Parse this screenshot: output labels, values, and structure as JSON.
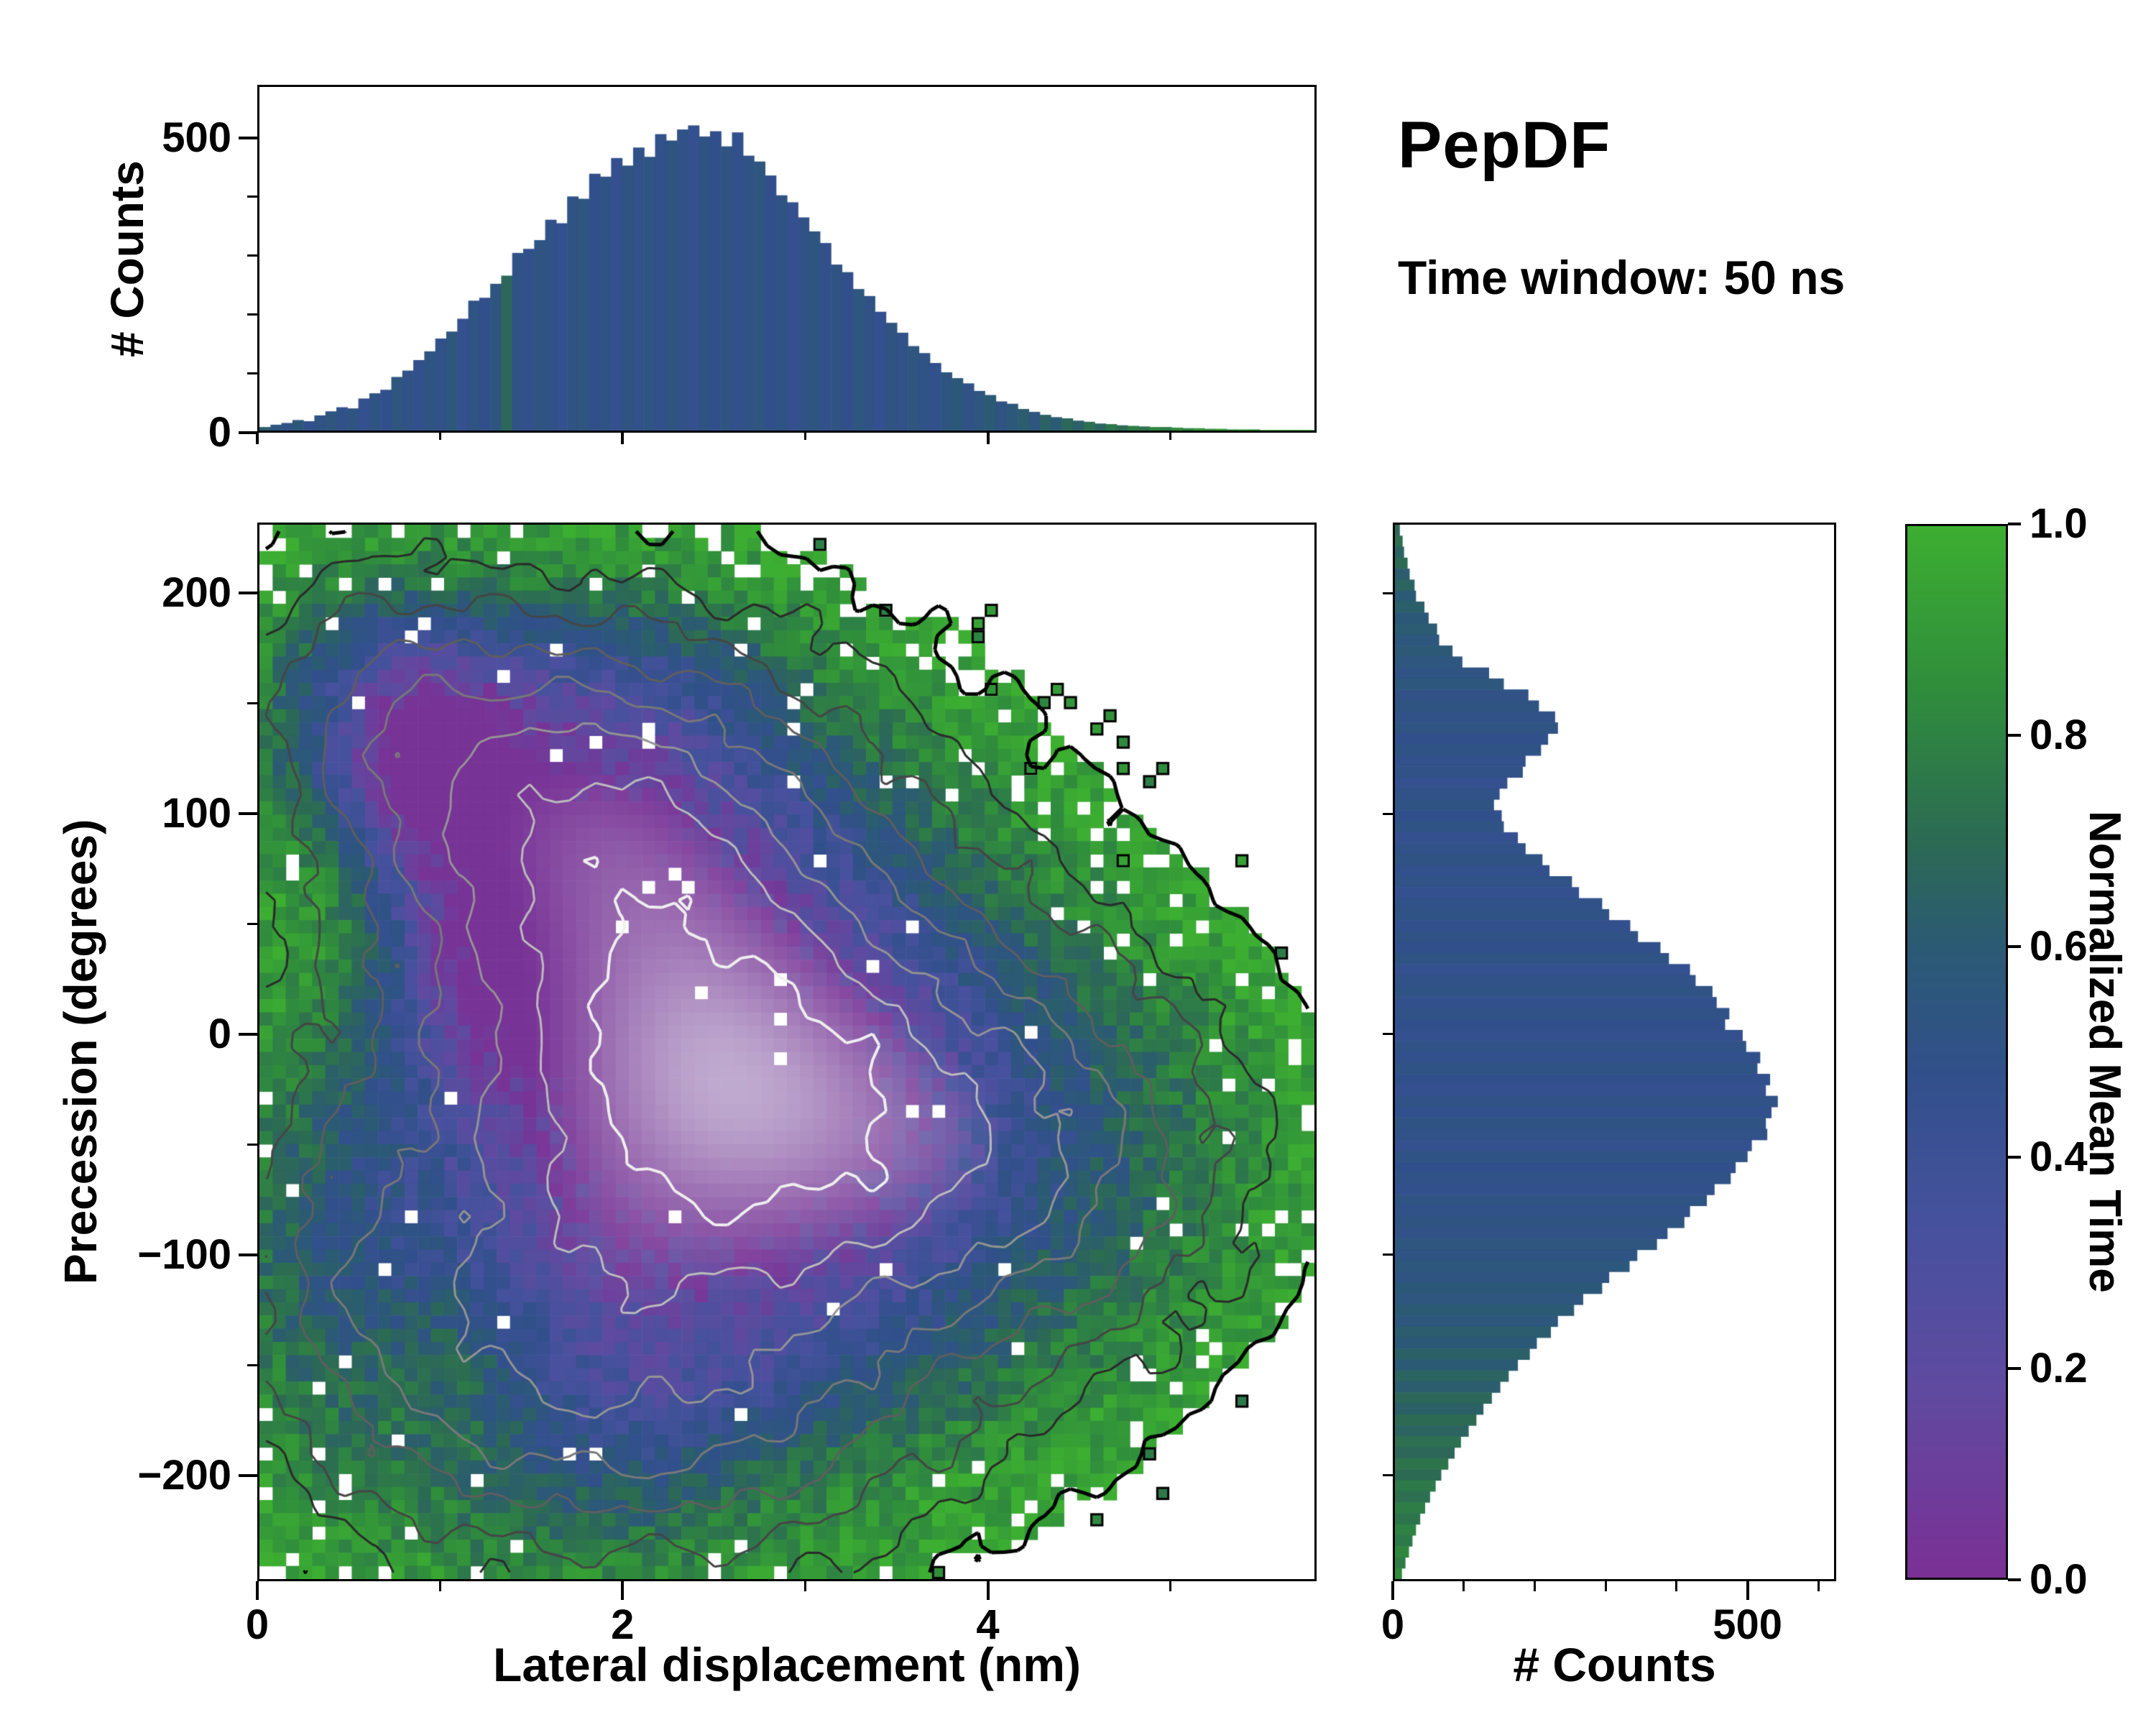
{
  "header": {
    "title": "PepDF",
    "subtitle": "Time window: 50 ns"
  },
  "colormap": {
    "stops": [
      [
        0.0,
        "#7b3095"
      ],
      [
        0.18,
        "#5f4aa0"
      ],
      [
        0.33,
        "#47519e"
      ],
      [
        0.48,
        "#31508b"
      ],
      [
        0.6,
        "#2b5a74"
      ],
      [
        0.7,
        "#2c6a54"
      ],
      [
        0.84,
        "#2f8c3c"
      ],
      [
        1.0,
        "#3cae31"
      ]
    ]
  },
  "chart_data": {
    "top_hist": {
      "type": "bar",
      "orientation": "vertical",
      "ylabel": "# Counts",
      "x_range": [
        0,
        5.8
      ],
      "y_range": [
        0,
        590
      ],
      "yticks": [
        {
          "label": "0",
          "value": 0
        },
        {
          "label": "500",
          "value": 500
        }
      ],
      "y_minor": [
        100,
        200,
        300,
        400
      ],
      "xticks": [
        {
          "label": "",
          "value": 0
        },
        {
          "label": "",
          "value": 2
        },
        {
          "label": "",
          "value": 4
        }
      ],
      "x_minor": [
        1,
        3,
        5
      ],
      "values": [
        6,
        10,
        13,
        18,
        16,
        26,
        33,
        40,
        38,
        55,
        64,
        70,
        92,
        103,
        121,
        136,
        158,
        170,
        192,
        223,
        228,
        252,
        266,
        305,
        312,
        327,
        362,
        356,
        402,
        398,
        441,
        436,
        468,
        455,
        486,
        470,
        509,
        498,
        517,
        524,
        505,
        514,
        488,
        512,
        472,
        462,
        438,
        404,
        392,
        366,
        342,
        322,
        285,
        272,
        243,
        231,
        204,
        185,
        168,
        145,
        133,
        116,
        100,
        90,
        81,
        68,
        61,
        50,
        46,
        37,
        32,
        27,
        23,
        21,
        17,
        15,
        12,
        11,
        9,
        8,
        7,
        6,
        6,
        5,
        4,
        4,
        3,
        3,
        2,
        2,
        2,
        1,
        1,
        1,
        1,
        1
      ],
      "colors": [
        0.62,
        0.55,
        0.5,
        0.58,
        0.47,
        0.52,
        0.55,
        0.49,
        0.53,
        0.46,
        0.52,
        0.48,
        0.55,
        0.5,
        0.47,
        0.53,
        0.49,
        0.56,
        0.46,
        0.52,
        0.48,
        0.54,
        0.68,
        0.5,
        0.47,
        0.53,
        0.49,
        0.46,
        0.52,
        0.55,
        0.48,
        0.51,
        0.46,
        0.53,
        0.49,
        0.52,
        0.47,
        0.54,
        0.5,
        0.46,
        0.52,
        0.48,
        0.53,
        0.47,
        0.51,
        0.55,
        0.48,
        0.52,
        0.46,
        0.5,
        0.54,
        0.47,
        0.52,
        0.48,
        0.55,
        0.5,
        0.46,
        0.53,
        0.49,
        0.55,
        0.51,
        0.47,
        0.54,
        0.58,
        0.5,
        0.55,
        0.6,
        0.52,
        0.57,
        0.62,
        0.55,
        0.65,
        0.6,
        0.68,
        0.63,
        0.72,
        0.66,
        0.75,
        0.7,
        0.78,
        0.74,
        0.82,
        0.77,
        0.85,
        0.8,
        0.88,
        0.83,
        0.9,
        0.86,
        0.92,
        0.88,
        0.93,
        0.9,
        0.95,
        0.92,
        0.96
      ]
    },
    "joint_heatmap": {
      "type": "heatmap",
      "xlabel": "Lateral displacement (nm)",
      "ylabel": "Precession (degrees)",
      "x_range": [
        0,
        5.8
      ],
      "y_range": [
        -248,
        232
      ],
      "xticks": [
        {
          "label": "0",
          "value": 0
        },
        {
          "label": "2",
          "value": 2
        },
        {
          "label": "4",
          "value": 4
        }
      ],
      "x_minor": [
        1,
        3,
        5
      ],
      "yticks": [
        {
          "label": "200",
          "value": 200
        },
        {
          "label": "100",
          "value": 100
        },
        {
          "label": "0",
          "value": 0
        },
        {
          "label": "−100",
          "value": -100
        },
        {
          "label": "−200",
          "value": -200
        }
      ],
      "y_minor": [
        150,
        50,
        -50,
        -150
      ],
      "grid": [
        80,
        80
      ],
      "seed": 7,
      "exist_threshold": 0.055,
      "density_peaks": [
        {
          "x": 2.3,
          "y": -5,
          "sx": 1.05,
          "sy": 95,
          "w": 1.0
        },
        {
          "x": 1.6,
          "y": 112,
          "sx": 0.85,
          "sy": 52,
          "w": 0.5
        },
        {
          "x": 3.6,
          "y": -55,
          "sx": 1.05,
          "sy": 72,
          "w": 0.5
        },
        {
          "x": 1.25,
          "y": -150,
          "sx": 0.75,
          "sy": 60,
          "w": 0.45
        },
        {
          "x": 2.6,
          "y": -185,
          "sx": 0.8,
          "sy": 45,
          "w": 0.3
        },
        {
          "x": 4.4,
          "y": -55,
          "sx": 0.7,
          "sy": 55,
          "w": 0.25
        },
        {
          "x": 0.6,
          "y": 160,
          "sx": 0.5,
          "sy": 45,
          "w": 0.25
        },
        {
          "x": 0.4,
          "y": -90,
          "sx": 0.45,
          "sy": 70,
          "w": 0.22
        }
      ],
      "value_patches": [
        {
          "x": 0.9,
          "y": 130,
          "sx": 0.6,
          "sy": 55,
          "dv": -0.5
        },
        {
          "x": 1.3,
          "y": 30,
          "sx": 0.55,
          "sy": 55,
          "dv": -0.4
        },
        {
          "x": 2.0,
          "y": 165,
          "sx": 0.8,
          "sy": 40,
          "dv": -0.15
        },
        {
          "x": 1.1,
          "y": -150,
          "sx": 0.65,
          "sy": 55,
          "dv": 0.32
        },
        {
          "x": 4.2,
          "y": -55,
          "sx": 0.8,
          "sy": 70,
          "dv": 0.26
        },
        {
          "x": 2.9,
          "y": -200,
          "sx": 0.9,
          "sy": 40,
          "dv": 0.15
        },
        {
          "x": 0.35,
          "y": 60,
          "sx": 0.4,
          "sy": 60,
          "dv": 0.15
        }
      ],
      "value_model": {
        "base": 1.02,
        "slope": 1.25,
        "noise": 0.22,
        "lighten_start": 0.68,
        "lighten_max": 0.75,
        "lighten_color": "#d7d2e2"
      },
      "contour_levels": [
        {
          "level": 0.055,
          "color": "#000000",
          "width": 5
        },
        {
          "level": 0.13,
          "color": "#2a2a2a",
          "width": 3
        },
        {
          "level": 0.22,
          "color": "#454545",
          "width": 3
        },
        {
          "level": 0.33,
          "color": "#5e5e5e",
          "width": 3
        },
        {
          "level": 0.45,
          "color": "#787878",
          "width": 3
        },
        {
          "level": 0.58,
          "color": "#949494",
          "width": 3
        },
        {
          "level": 0.72,
          "color": "#bcbcbc",
          "width": 3
        },
        {
          "level": 0.86,
          "color": "#efefef",
          "width": 4
        }
      ]
    },
    "right_hist": {
      "type": "bar",
      "orientation": "horizontal",
      "xlabel": "# Counts",
      "x_range": [
        0,
        625
      ],
      "y_range": [
        -248,
        232
      ],
      "xticks": [
        {
          "label": "0",
          "value": 0
        },
        {
          "label": "500",
          "value": 500
        }
      ],
      "x_minor": [
        100,
        200,
        300,
        400,
        600
      ],
      "values": [
        7,
        11,
        13,
        18,
        21,
        28,
        30,
        42,
        48,
        60,
        63,
        82,
        96,
        134,
        155,
        190,
        205,
        228,
        232,
        218,
        208,
        186,
        182,
        160,
        149,
        141,
        152,
        155,
        175,
        186,
        210,
        220,
        252,
        262,
        295,
        305,
        335,
        346,
        378,
        390,
        420,
        428,
        452,
        458,
        476,
        470,
        495,
        500,
        520,
        516,
        534,
        528,
        545,
        536,
        528,
        530,
        508,
        502,
        485,
        478,
        455,
        444,
        420,
        412,
        388,
        373,
        345,
        334,
        305,
        295,
        268,
        255,
        232,
        222,
        202,
        192,
        175,
        162,
        150,
        138,
        126,
        116,
        105,
        94,
        85,
        76,
        66,
        58,
        50,
        43,
        36,
        30,
        25,
        20,
        15,
        10
      ],
      "colors": [
        0.68,
        0.72,
        0.65,
        0.7,
        0.62,
        0.66,
        0.6,
        0.63,
        0.58,
        0.61,
        0.56,
        0.59,
        0.55,
        0.52,
        0.56,
        0.5,
        0.53,
        0.49,
        0.52,
        0.48,
        0.51,
        0.47,
        0.5,
        0.46,
        0.49,
        0.52,
        0.48,
        0.51,
        0.46,
        0.49,
        0.52,
        0.47,
        0.5,
        0.46,
        0.49,
        0.51,
        0.47,
        0.5,
        0.48,
        0.52,
        0.46,
        0.49,
        0.51,
        0.47,
        0.5,
        0.48,
        0.46,
        0.5,
        0.47,
        0.51,
        0.48,
        0.46,
        0.5,
        0.47,
        0.52,
        0.49,
        0.46,
        0.51,
        0.48,
        0.5,
        0.47,
        0.52,
        0.49,
        0.53,
        0.5,
        0.55,
        0.52,
        0.56,
        0.53,
        0.58,
        0.55,
        0.6,
        0.56,
        0.62,
        0.58,
        0.64,
        0.6,
        0.66,
        0.62,
        0.68,
        0.64,
        0.7,
        0.66,
        0.72,
        0.68,
        0.74,
        0.7,
        0.76,
        0.72,
        0.78,
        0.74,
        0.8,
        0.76,
        0.82,
        0.78,
        0.84
      ]
    },
    "colorbar": {
      "label": "Normalized Mean Time",
      "range": [
        0,
        1
      ],
      "ticks": [
        {
          "label": "0.0",
          "value": 0.0
        },
        {
          "label": "0.2",
          "value": 0.2
        },
        {
          "label": "0.4",
          "value": 0.4
        },
        {
          "label": "0.6",
          "value": 0.6
        },
        {
          "label": "0.8",
          "value": 0.8
        },
        {
          "label": "1.0",
          "value": 1.0
        }
      ]
    }
  }
}
